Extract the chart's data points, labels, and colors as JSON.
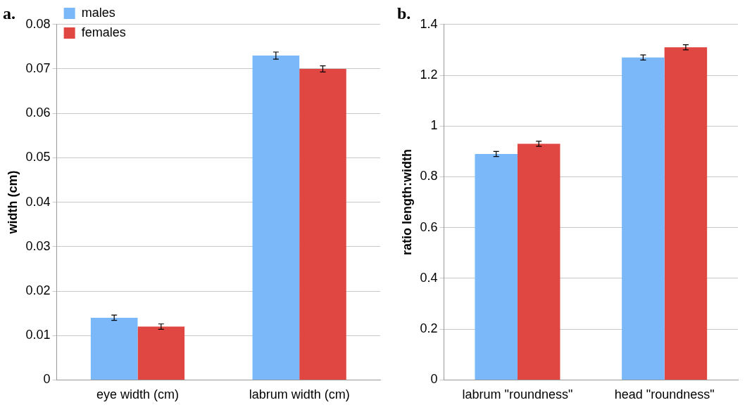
{
  "chart_data": [
    {
      "type": "bar",
      "title": "a.",
      "ylabel": "width (cm)",
      "categories": [
        "eye width (cm)",
        "labrum width (cm)"
      ],
      "series": [
        {
          "name": "males",
          "color": "#7ab8fa",
          "values": [
            0.014,
            0.073
          ],
          "errors": [
            0.0006,
            0.0008
          ]
        },
        {
          "name": "females",
          "color": "#e04742",
          "values": [
            0.012,
            0.07
          ],
          "errors": [
            0.0006,
            0.0007
          ]
        }
      ],
      "ylim": [
        0,
        0.08
      ],
      "yticks": [
        0,
        0.01,
        0.02,
        0.03,
        0.04,
        0.05,
        0.06,
        0.07,
        0.08
      ],
      "grid": "y",
      "legend": "top left"
    },
    {
      "type": "bar",
      "title": "b.",
      "ylabel": "ratio length:width",
      "categories": [
        "labrum \"roundness\"",
        "head \"roundness\""
      ],
      "series": [
        {
          "color": "#7ab8fa",
          "values": [
            0.89,
            1.27
          ],
          "errors": [
            0.01,
            0.01
          ]
        },
        {
          "color": "#e04742",
          "values": [
            0.93,
            1.31
          ],
          "errors": [
            0.01,
            0.01
          ]
        }
      ],
      "ylim": [
        0,
        1.4
      ],
      "yticks": [
        0,
        0.2,
        0.4,
        0.6,
        0.8,
        1,
        1.2,
        1.4
      ],
      "grid": "y"
    }
  ]
}
